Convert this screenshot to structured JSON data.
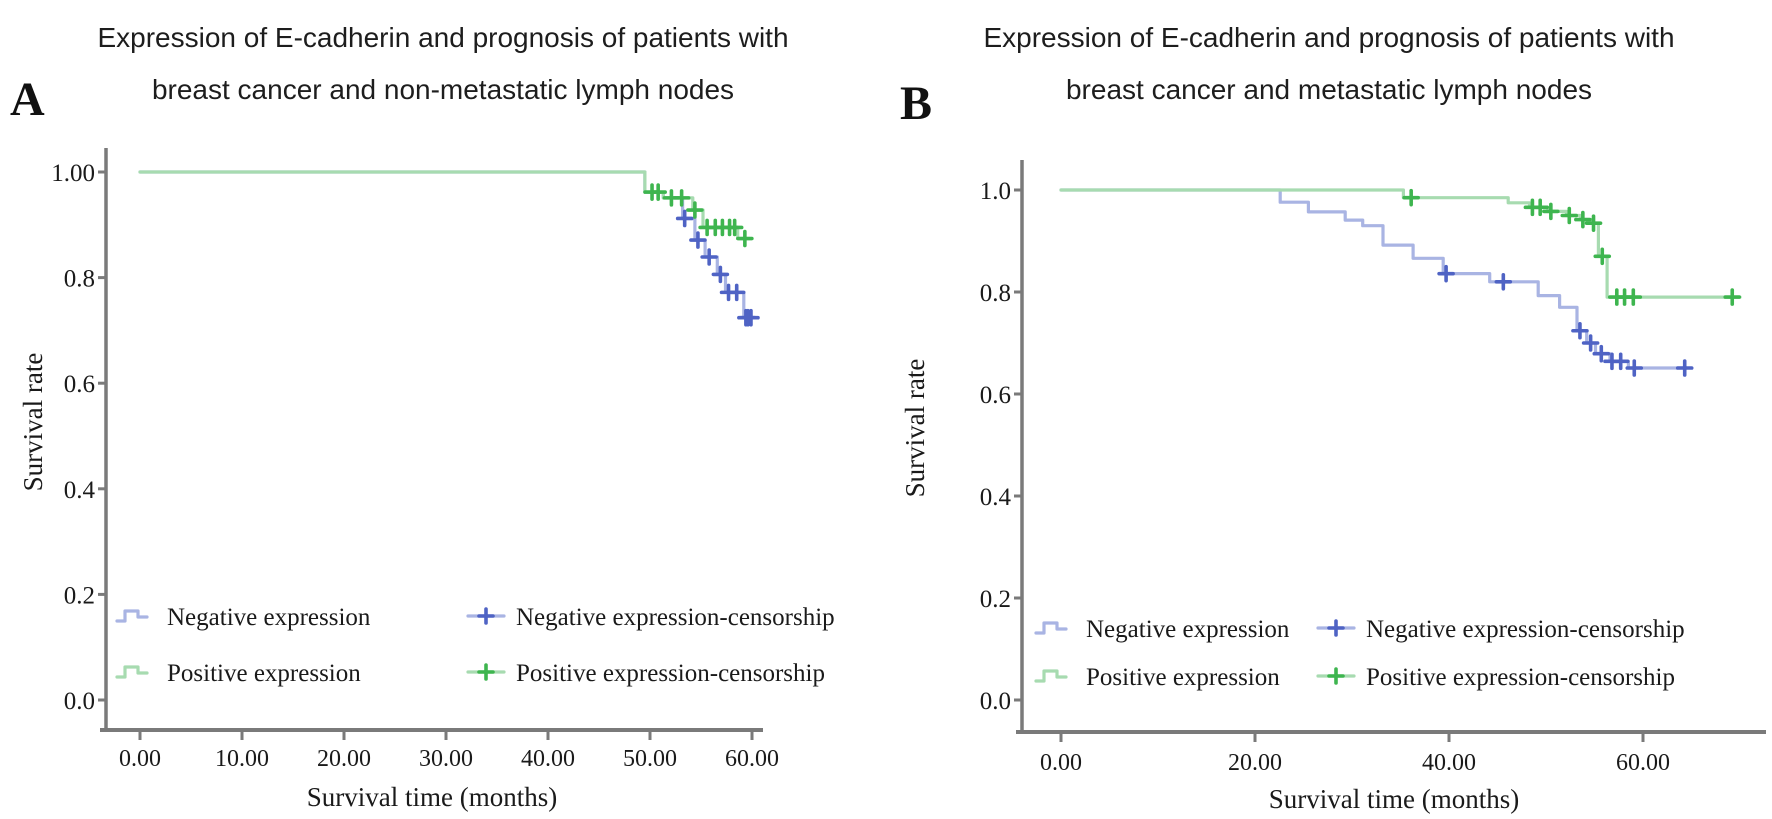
{
  "figure": {
    "panels": [
      {
        "label": "A",
        "title_line1": "Expression of E-cadherin and prognosis of patients with",
        "title_line2": "breast cancer and non-metastatic lymph nodes"
      },
      {
        "label": "B",
        "title_line1": "Expression of E-cadherin and prognosis of patients with",
        "title_line2": "breast cancer and metastatic lymph nodes"
      }
    ]
  },
  "colors": {
    "negative_line": "#a9b4e3",
    "negative_censor": "#4f63c4",
    "positive_line": "#a7dbb0",
    "positive_censor": "#3eb54f",
    "axis": "#7a7a7a",
    "text": "#1a1a1a"
  },
  "chart_data": [
    {
      "type": "line",
      "subtype": "kaplan-meier-step",
      "panel": "A",
      "title": "Expression of E-cadherin and prognosis of patients with breast cancer and non-metastatic lymph nodes",
      "xlabel": "Survival time (months)",
      "ylabel": "Survival rate",
      "xlim": [
        0,
        61
      ],
      "ylim": [
        0,
        1.02
      ],
      "grid": false,
      "legend_position": "bottom-left-inside",
      "x_ticks": {
        "values": [
          0,
          10,
          20,
          30,
          40,
          50,
          60
        ],
        "labels": [
          "0.00",
          "10.00",
          "20.00",
          "30.00",
          "40.00",
          "50.00",
          "60.00"
        ]
      },
      "y_ticks": {
        "values": [
          1.0,
          0.8,
          0.6,
          0.4,
          0.2,
          0.0
        ],
        "labels": [
          "1.00",
          "0.8",
          "0.6",
          "0.4",
          "0.2",
          "0.0"
        ]
      },
      "legend": [
        {
          "label": "Negative expression",
          "type": "line",
          "series": "negative"
        },
        {
          "label": "Positive expression",
          "type": "line",
          "series": "positive"
        },
        {
          "label": "Negative expression-censorship",
          "type": "censor",
          "series": "negative"
        },
        {
          "label": "Positive expression-censorship",
          "type": "censor",
          "series": "positive"
        }
      ],
      "series": [
        {
          "name": "Negative expression",
          "color_key": "negative",
          "points": [
            [
              0,
              1.0
            ],
            [
              49.5,
              1.0
            ],
            [
              49.5,
              0.962
            ],
            [
              51.3,
              0.962
            ],
            [
              51.3,
              0.951
            ],
            [
              53.2,
              0.951
            ],
            [
              53.2,
              0.912
            ],
            [
              54.4,
              0.912
            ],
            [
              54.4,
              0.871
            ],
            [
              55.4,
              0.871
            ],
            [
              55.4,
              0.839
            ],
            [
              56.6,
              0.839
            ],
            [
              56.6,
              0.806
            ],
            [
              57.4,
              0.806
            ],
            [
              57.4,
              0.772
            ],
            [
              59.2,
              0.772
            ],
            [
              59.2,
              0.724
            ],
            [
              60.2,
              0.724
            ]
          ],
          "censors": [
            [
              53.4,
              0.912
            ],
            [
              54.7,
              0.871
            ],
            [
              55.8,
              0.839
            ],
            [
              56.9,
              0.806
            ],
            [
              57.7,
              0.772
            ],
            [
              58.5,
              0.772
            ],
            [
              59.4,
              0.724
            ],
            [
              59.6,
              0.724
            ],
            [
              59.9,
              0.724
            ]
          ]
        },
        {
          "name": "Positive expression",
          "color_key": "positive",
          "points": [
            [
              0,
              1.0
            ],
            [
              49.5,
              1.0
            ],
            [
              49.5,
              0.962
            ],
            [
              51.3,
              0.962
            ],
            [
              51.3,
              0.951
            ],
            [
              54.2,
              0.951
            ],
            [
              54.2,
              0.928
            ],
            [
              55.2,
              0.928
            ],
            [
              55.2,
              0.895
            ],
            [
              58.6,
              0.895
            ],
            [
              58.6,
              0.874
            ],
            [
              59.8,
              0.874
            ]
          ],
          "censors": [
            [
              50.2,
              0.962
            ],
            [
              50.8,
              0.962
            ],
            [
              52.1,
              0.951
            ],
            [
              53.1,
              0.951
            ],
            [
              54.4,
              0.928
            ],
            [
              55.6,
              0.895
            ],
            [
              56.4,
              0.895
            ],
            [
              57.1,
              0.895
            ],
            [
              57.8,
              0.895
            ],
            [
              58.3,
              0.895
            ],
            [
              59.3,
              0.874
            ]
          ]
        }
      ]
    },
    {
      "type": "line",
      "subtype": "kaplan-meier-step",
      "panel": "B",
      "title": "Expression of E-cadherin and prognosis of patients with breast cancer and metastatic lymph nodes",
      "xlabel": "Survival time (months)",
      "ylabel": "Survival rate",
      "xlim": [
        0,
        73
      ],
      "ylim": [
        0,
        1.02
      ],
      "grid": false,
      "legend_position": "bottom-left-inside",
      "x_ticks": {
        "values": [
          0,
          20,
          40,
          60
        ],
        "labels": [
          "0.00",
          "20.00",
          "40.00",
          "60.00"
        ]
      },
      "y_ticks": {
        "values": [
          1.0,
          0.8,
          0.6,
          0.4,
          0.2,
          0.0
        ],
        "labels": [
          "1.0",
          "0.8",
          "0.6",
          "0.4",
          "0.2",
          "0.0"
        ]
      },
      "legend": [
        {
          "label": "Negative expression",
          "type": "line",
          "series": "negative"
        },
        {
          "label": "Positive expression",
          "type": "line",
          "series": "positive"
        },
        {
          "label": "Negative expression-censorship",
          "type": "censor",
          "series": "negative"
        },
        {
          "label": "Positive expression-censorship",
          "type": "censor",
          "series": "positive"
        }
      ],
      "series": [
        {
          "name": "Negative expression",
          "color_key": "negative",
          "points": [
            [
              0,
              1.0
            ],
            [
              22.6,
              1.0
            ],
            [
              22.6,
              0.976
            ],
            [
              25.5,
              0.976
            ],
            [
              25.5,
              0.957
            ],
            [
              29.3,
              0.957
            ],
            [
              29.3,
              0.941
            ],
            [
              31.1,
              0.941
            ],
            [
              31.1,
              0.93
            ],
            [
              33.2,
              0.93
            ],
            [
              33.2,
              0.892
            ],
            [
              36.3,
              0.892
            ],
            [
              36.3,
              0.866
            ],
            [
              39.4,
              0.866
            ],
            [
              39.4,
              0.836
            ],
            [
              44.2,
              0.836
            ],
            [
              44.2,
              0.82
            ],
            [
              49.2,
              0.82
            ],
            [
              49.2,
              0.793
            ],
            [
              51.4,
              0.793
            ],
            [
              51.4,
              0.77
            ],
            [
              53.2,
              0.77
            ],
            [
              53.2,
              0.724
            ],
            [
              54.2,
              0.724
            ],
            [
              54.2,
              0.7
            ],
            [
              55.1,
              0.7
            ],
            [
              55.1,
              0.679
            ],
            [
              56.6,
              0.679
            ],
            [
              56.6,
              0.664
            ],
            [
              58.5,
              0.664
            ],
            [
              58.5,
              0.651
            ],
            [
              64.5,
              0.651
            ]
          ],
          "censors": [
            [
              39.7,
              0.836
            ],
            [
              45.6,
              0.82
            ],
            [
              53.5,
              0.724
            ],
            [
              54.6,
              0.7
            ],
            [
              55.7,
              0.679
            ],
            [
              56.8,
              0.664
            ],
            [
              57.7,
              0.664
            ],
            [
              59.1,
              0.651
            ],
            [
              64.3,
              0.651
            ]
          ]
        },
        {
          "name": "Positive expression",
          "color_key": "positive",
          "points": [
            [
              0,
              1.0
            ],
            [
              35.3,
              1.0
            ],
            [
              35.3,
              0.985
            ],
            [
              46.1,
              0.985
            ],
            [
              46.1,
              0.975
            ],
            [
              48.3,
              0.975
            ],
            [
              48.3,
              0.966
            ],
            [
              50.2,
              0.966
            ],
            [
              50.2,
              0.958
            ],
            [
              52.1,
              0.958
            ],
            [
              52.1,
              0.95
            ],
            [
              53.6,
              0.95
            ],
            [
              53.6,
              0.942
            ],
            [
              54.8,
              0.942
            ],
            [
              54.8,
              0.935
            ],
            [
              55.4,
              0.935
            ],
            [
              55.4,
              0.87
            ],
            [
              56.3,
              0.87
            ],
            [
              56.3,
              0.79
            ],
            [
              70.0,
              0.79
            ]
          ],
          "censors": [
            [
              36.1,
              0.985
            ],
            [
              48.6,
              0.966
            ],
            [
              49.4,
              0.966
            ],
            [
              50.5,
              0.958
            ],
            [
              52.4,
              0.95
            ],
            [
              53.8,
              0.942
            ],
            [
              54.9,
              0.935
            ],
            [
              55.8,
              0.87
            ],
            [
              57.3,
              0.79
            ],
            [
              58.1,
              0.79
            ],
            [
              59.0,
              0.79
            ],
            [
              69.2,
              0.79
            ]
          ]
        }
      ]
    }
  ]
}
